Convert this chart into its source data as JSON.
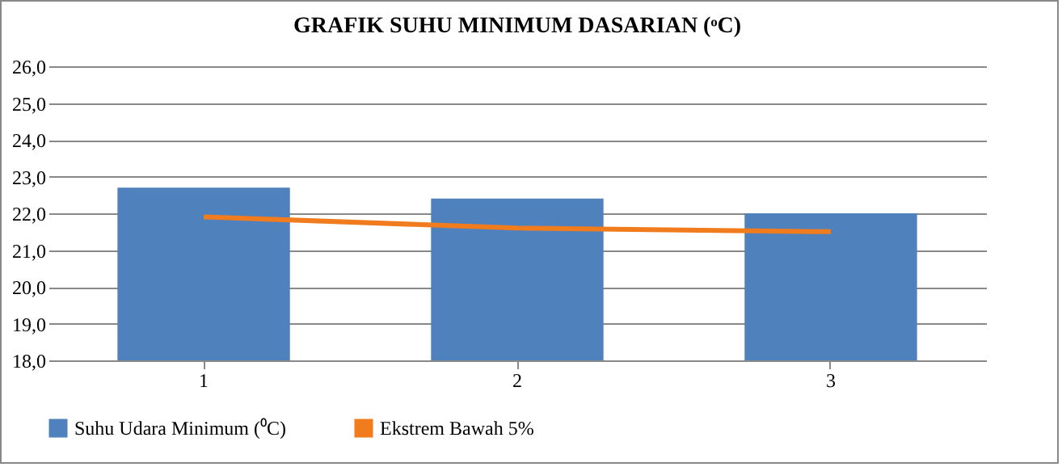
{
  "chart_data": {
    "type": "bar",
    "title": "GRAFIK SUHU MINIMUM DASARIAN (ᵒC)",
    "categories": [
      "1",
      "2",
      "3"
    ],
    "series": [
      {
        "name": "Suhu Udara Minimum (⁰C)",
        "color": "#4f81bd",
        "values": [
          22.7,
          22.4,
          22.0
        ]
      },
      {
        "name": "Ekstrem Bawah  5%",
        "type": "line",
        "color": "#f07c1e",
        "values": [
          21.9,
          21.6,
          21.5
        ]
      }
    ],
    "ylim": [
      18,
      26
    ],
    "yticks": [
      {
        "value": 18,
        "label": "18,0"
      },
      {
        "value": 19,
        "label": "19,0"
      },
      {
        "value": 20,
        "label": "20,0"
      },
      {
        "value": 21,
        "label": "21,0"
      },
      {
        "value": 22,
        "label": "22,0"
      },
      {
        "value": 23,
        "label": "23,0"
      },
      {
        "value": 24,
        "label": "24,0"
      },
      {
        "value": 25,
        "label": "25,0"
      },
      {
        "value": 26,
        "label": "26,0"
      }
    ],
    "grid": "y",
    "legend": "bottom",
    "marker": "none"
  }
}
